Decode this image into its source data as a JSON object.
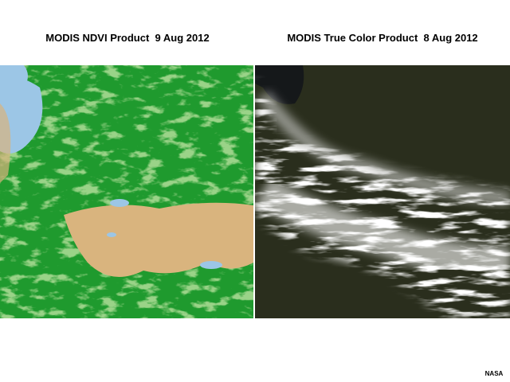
{
  "panels": [
    {
      "title": "MODIS NDVI Product  9 Aug 2012"
    },
    {
      "title": "MODIS True Color Product  8 Aug 2012"
    }
  ],
  "credit": "NASA"
}
